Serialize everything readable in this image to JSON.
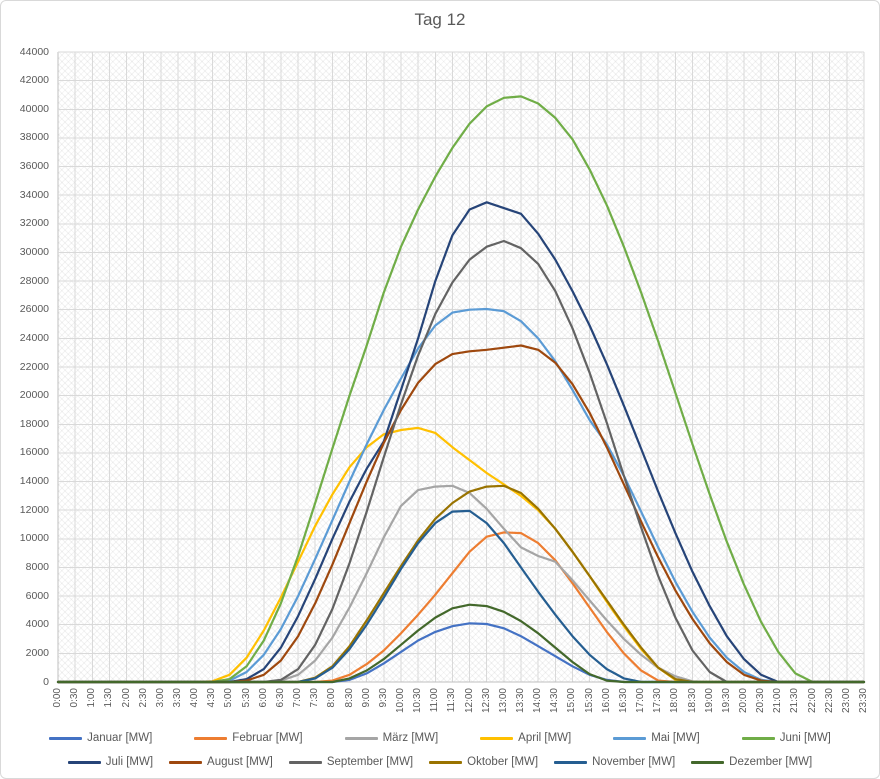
{
  "colors": {
    "background": "#FFFFFF",
    "border": "#D9D9D9",
    "gridline": "#D9D9D9",
    "axis_line": "#BFBFBF",
    "title_text": "#595959",
    "axis_text": "#595959",
    "legend_text": "#595959"
  },
  "chart_data": {
    "type": "line",
    "title": "Tag 12",
    "xlabel": "",
    "ylabel": "",
    "ylim": [
      0,
      44000
    ],
    "grid": true,
    "legend_position": "bottom",
    "plot_area_fill": "diagonal-crosshatch",
    "y_ticks": [
      0,
      2000,
      4000,
      6000,
      8000,
      10000,
      12000,
      14000,
      16000,
      18000,
      20000,
      22000,
      24000,
      26000,
      28000,
      30000,
      32000,
      34000,
      36000,
      38000,
      40000,
      42000,
      44000
    ],
    "x_labels": [
      "0:00",
      "0:30",
      "1:00",
      "1:30",
      "2:00",
      "2:30",
      "3:00",
      "3:30",
      "4:00",
      "4:30",
      "5:00",
      "5:30",
      "6:00",
      "6:30",
      "7:00",
      "7:30",
      "8:00",
      "8:30",
      "9:00",
      "9:30",
      "10:00",
      "10:30",
      "11:00",
      "11:30",
      "12:00",
      "12:30",
      "13:00",
      "13:30",
      "14:00",
      "14:30",
      "15:00",
      "15:30",
      "16:00",
      "16:30",
      "17:00",
      "17:30",
      "18:00",
      "18:30",
      "19:00",
      "19:30",
      "20:00",
      "20:30",
      "21:00",
      "21:30",
      "22:00",
      "22:30",
      "23:00",
      "23:30"
    ],
    "series": [
      {
        "name": "Januar [MW]",
        "color": "#4472C4",
        "values": [
          0,
          0,
          0,
          0,
          0,
          0,
          0,
          0,
          0,
          0,
          0,
          0,
          0,
          0,
          0,
          0,
          0,
          150,
          600,
          1300,
          2100,
          2900,
          3500,
          3900,
          4100,
          4050,
          3750,
          3200,
          2500,
          1800,
          1100,
          500,
          150,
          0,
          0,
          0,
          0,
          0,
          0,
          0,
          0,
          0,
          0,
          0,
          0,
          0,
          0,
          0
        ]
      },
      {
        "name": "Februar [MW]",
        "color": "#ED7D31",
        "values": [
          0,
          0,
          0,
          0,
          0,
          0,
          0,
          0,
          0,
          0,
          0,
          0,
          0,
          0,
          0,
          0,
          100,
          500,
          1250,
          2200,
          3400,
          4700,
          6100,
          7600,
          9100,
          10150,
          10450,
          10400,
          9700,
          8500,
          6900,
          5200,
          3500,
          2000,
          800,
          100,
          0,
          0,
          0,
          0,
          0,
          0,
          0,
          0,
          0,
          0,
          0,
          0
        ]
      },
      {
        "name": "März [MW]",
        "color": "#A5A5A5",
        "values": [
          0,
          0,
          0,
          0,
          0,
          0,
          0,
          0,
          0,
          0,
          0,
          0,
          0,
          100,
          500,
          1500,
          3100,
          5200,
          7600,
          10100,
          12300,
          13400,
          13650,
          13700,
          13200,
          12100,
          10700,
          9400,
          8800,
          8400,
          7100,
          5700,
          4300,
          3000,
          1900,
          1000,
          400,
          50,
          0,
          0,
          0,
          0,
          0,
          0,
          0,
          0,
          0,
          0
        ]
      },
      {
        "name": "April [MW]",
        "color": "#FFC000",
        "values": [
          0,
          0,
          0,
          0,
          0,
          0,
          0,
          0,
          0,
          50,
          500,
          1700,
          3600,
          5900,
          8400,
          10900,
          13100,
          15000,
          16400,
          17300,
          17600,
          17750,
          17400,
          16400,
          15500,
          14600,
          13800,
          13000,
          12000,
          10700,
          9100,
          7400,
          5600,
          3900,
          2300,
          1000,
          150,
          0,
          0,
          0,
          0,
          0,
          0,
          0,
          0,
          0,
          0,
          0
        ]
      },
      {
        "name": "Mai [MW]",
        "color": "#5B9BD5",
        "values": [
          0,
          0,
          0,
          0,
          0,
          0,
          0,
          0,
          0,
          0,
          100,
          700,
          1900,
          3700,
          6000,
          8600,
          11300,
          14000,
          16600,
          19000,
          21200,
          23300,
          24900,
          25800,
          26000,
          26050,
          25900,
          25200,
          24000,
          22400,
          20400,
          18300,
          16600,
          14400,
          11900,
          9400,
          7000,
          4900,
          3100,
          1700,
          700,
          150,
          0,
          0,
          0,
          0,
          0,
          0
        ]
      },
      {
        "name": "Juni [MW]",
        "color": "#70AD47",
        "values": [
          0,
          0,
          0,
          0,
          0,
          0,
          0,
          0,
          0,
          0,
          200,
          1100,
          2900,
          5500,
          8800,
          12500,
          16300,
          20000,
          23500,
          27200,
          30400,
          33000,
          35300,
          37300,
          39000,
          40200,
          40800,
          40900,
          40400,
          39400,
          37900,
          35800,
          33300,
          30400,
          27200,
          23800,
          20200,
          16600,
          13100,
          9800,
          6800,
          4200,
          2100,
          600,
          0,
          0,
          0,
          0
        ]
      },
      {
        "name": "Juli [MW]",
        "color": "#264478",
        "values": [
          0,
          0,
          0,
          0,
          0,
          0,
          0,
          0,
          0,
          0,
          0,
          200,
          900,
          2400,
          4600,
          7200,
          10000,
          12600,
          14900,
          16800,
          20400,
          24000,
          28000,
          31200,
          33000,
          33500,
          33100,
          32700,
          31300,
          29500,
          27300,
          24900,
          22200,
          19300,
          16300,
          13300,
          10400,
          7700,
          5300,
          3200,
          1600,
          500,
          0,
          0,
          0,
          0,
          0,
          0
        ]
      },
      {
        "name": "August [MW]",
        "color": "#9E480E",
        "values": [
          0,
          0,
          0,
          0,
          0,
          0,
          0,
          0,
          0,
          0,
          0,
          100,
          500,
          1500,
          3200,
          5500,
          8200,
          11100,
          14000,
          16700,
          19000,
          20900,
          22200,
          22900,
          23100,
          23200,
          23350,
          23500,
          23200,
          22300,
          20800,
          18800,
          16400,
          13800,
          11200,
          8700,
          6400,
          4400,
          2700,
          1400,
          500,
          100,
          0,
          0,
          0,
          0,
          0,
          0
        ]
      },
      {
        "name": "September [MW]",
        "color": "#636363",
        "values": [
          0,
          0,
          0,
          0,
          0,
          0,
          0,
          0,
          0,
          0,
          0,
          0,
          0,
          150,
          900,
          2600,
          5100,
          8300,
          11900,
          15700,
          19400,
          22800,
          25700,
          27900,
          29500,
          30400,
          30800,
          30300,
          29200,
          27300,
          24700,
          21600,
          18100,
          14400,
          10800,
          7400,
          4500,
          2200,
          700,
          0,
          0,
          0,
          0,
          0,
          0,
          0,
          0,
          0
        ]
      },
      {
        "name": "Oktober [MW]",
        "color": "#997300",
        "values": [
          0,
          0,
          0,
          0,
          0,
          0,
          0,
          0,
          0,
          0,
          0,
          0,
          0,
          0,
          0,
          300,
          1100,
          2500,
          4300,
          6200,
          8100,
          9900,
          11400,
          12500,
          13300,
          13650,
          13700,
          13200,
          12100,
          10700,
          9100,
          7400,
          5700,
          4000,
          2400,
          1000,
          200,
          0,
          0,
          0,
          0,
          0,
          0,
          0,
          0,
          0,
          0,
          0
        ]
      },
      {
        "name": "November [MW]",
        "color": "#255E91",
        "values": [
          0,
          0,
          0,
          0,
          0,
          0,
          0,
          0,
          0,
          0,
          0,
          0,
          0,
          0,
          0,
          250,
          1000,
          2300,
          4000,
          5900,
          7900,
          9700,
          11100,
          11900,
          11950,
          11100,
          9700,
          8000,
          6300,
          4700,
          3200,
          1900,
          900,
          250,
          0,
          0,
          0,
          0,
          0,
          0,
          0,
          0,
          0,
          0,
          0,
          0,
          0,
          0
        ]
      },
      {
        "name": "Dezember [MW]",
        "color": "#43682B",
        "values": [
          0,
          0,
          0,
          0,
          0,
          0,
          0,
          0,
          0,
          0,
          0,
          0,
          0,
          0,
          0,
          0,
          0,
          250,
          800,
          1600,
          2600,
          3600,
          4500,
          5150,
          5400,
          5300,
          4900,
          4250,
          3400,
          2400,
          1400,
          550,
          100,
          0,
          0,
          0,
          0,
          0,
          0,
          0,
          0,
          0,
          0,
          0,
          0,
          0,
          0,
          0
        ]
      }
    ]
  }
}
